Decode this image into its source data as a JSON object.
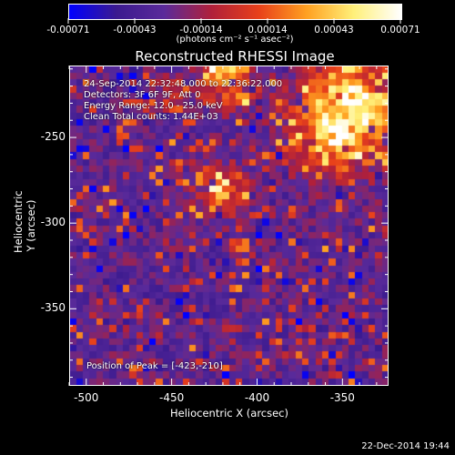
{
  "colorbar": {
    "tick_labels": [
      "-0.00071",
      "-0.00043",
      "-0.00014",
      "0.00014",
      "0.00043",
      "0.00071"
    ],
    "range": [
      -0.00071,
      0.00071
    ],
    "colormap": [
      "#0000ff",
      "#3b1a8f",
      "#5a2a9a",
      "#b0203a",
      "#e8401a",
      "#ffa020",
      "#fff07a",
      "#ffffff"
    ]
  },
  "units_label": "(photons cm⁻² s⁻¹ asec⁻²)",
  "chart_data": {
    "type": "heatmap",
    "title": "Reconstructed RHESSI Image",
    "xlabel": "Heliocentric X (arcsec)",
    "ylabel": "Heliocentric Y (arcsec)",
    "xlim": [
      -510,
      -323
    ],
    "ylim": [
      -395,
      -208
    ],
    "x_ticks": [
      "-500",
      "-450",
      "-400",
      "-350"
    ],
    "y_ticks": [
      "-250",
      "-300",
      "-350"
    ],
    "x_tick_values": [
      -500,
      -450,
      -400,
      -350
    ],
    "y_tick_values": [
      -250,
      -300,
      -350
    ],
    "annotations": [
      "24-Sep-2014 22:32:48.000 to 22:36:22.000",
      "Detectors: 3F 6F 9F, Att 0",
      "Energy Range: 12.0 - 25.0 keV",
      "Clean     Total counts: 1.44E+03"
    ],
    "peak_label": "Position of Peak = [-423,-210]",
    "peak_position": [
      -423,
      -210
    ]
  },
  "footer_timestamp": "22-Dec-2014 19:44"
}
